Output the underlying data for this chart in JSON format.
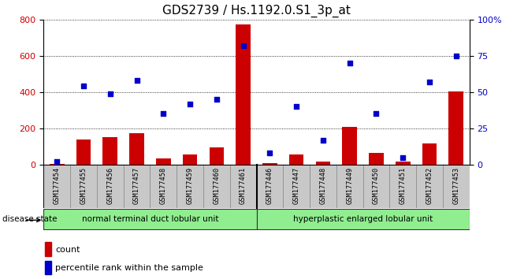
{
  "title": "GDS2739 / Hs.1192.0.S1_3p_at",
  "samples": [
    "GSM177454",
    "GSM177455",
    "GSM177456",
    "GSM177457",
    "GSM177458",
    "GSM177459",
    "GSM177460",
    "GSM177461",
    "GSM177446",
    "GSM177447",
    "GSM177448",
    "GSM177449",
    "GSM177450",
    "GSM177451",
    "GSM177452",
    "GSM177453"
  ],
  "counts": [
    5,
    140,
    150,
    175,
    35,
    55,
    95,
    775,
    10,
    55,
    15,
    210,
    65,
    15,
    115,
    405
  ],
  "percentiles": [
    2,
    54,
    49,
    58,
    35,
    42,
    45,
    82,
    8,
    40,
    17,
    70,
    35,
    5,
    57,
    75
  ],
  "group1_label": "normal terminal duct lobular unit",
  "group1_count": 8,
  "group2_label": "hyperplastic enlarged lobular unit",
  "group2_count": 8,
  "disease_state_label": "disease state",
  "ylim_left": [
    0,
    800
  ],
  "ylim_right": [
    0,
    100
  ],
  "yticks_left": [
    0,
    200,
    400,
    600,
    800
  ],
  "yticks_right": [
    0,
    25,
    50,
    75,
    100
  ],
  "bar_color": "#cc0000",
  "dot_color": "#0000cc",
  "legend_count_label": "count",
  "legend_pct_label": "percentile rank within the sample",
  "bar_width": 0.55,
  "group_bg_color": "#90ee90",
  "tick_bg_color": "#c8c8c8",
  "title_fontsize": 11,
  "right_tick_labels": [
    "0",
    "25",
    "50",
    "75",
    "100%"
  ]
}
